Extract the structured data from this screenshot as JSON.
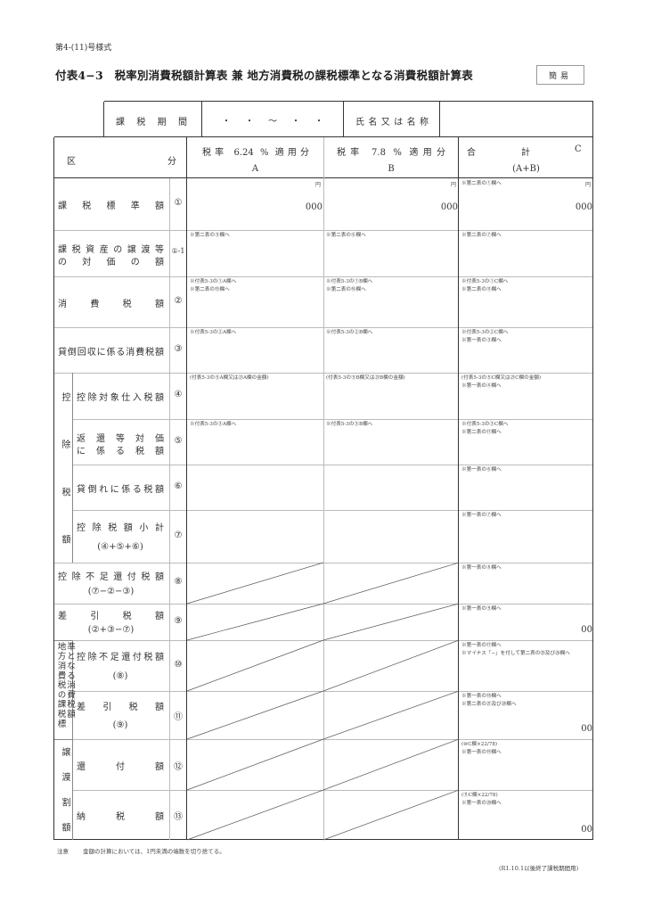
{
  "form_number": "第4-(11)号様式",
  "title": "付表4−3　税率別消費税額計算表 兼 地方消費税の課税標準となる消費税額計算表",
  "badge": "簡易",
  "top_table": {
    "period_label": "課税期間",
    "period_value": "・　・　〜　・　・",
    "name_label": "氏名又は名称",
    "name_value": ""
  },
  "header": {
    "category_left": "区",
    "category_right": "分",
    "col_a_line1": "税率 6.24 % 適用分",
    "col_a_line2": "A",
    "col_b_line1": "税率 7.8 % 適用分",
    "col_b_line2": "B",
    "col_c_left": "合",
    "col_c_mid": "計",
    "col_c_right": "C",
    "col_c_line2": "(A+B)"
  },
  "groups": [
    {
      "label": "控除税額",
      "vertical": false,
      "chars": [
        "控",
        "除",
        "税",
        "額"
      ]
    },
    {
      "label": "地方消費税の課税標準となる消費税額",
      "vertical": true
    },
    {
      "label": "譲渡割額",
      "vertical": false,
      "chars": [
        "譲",
        "渡",
        "割",
        "額"
      ]
    }
  ],
  "rows": [
    {
      "label": [
        "課税標準額"
      ],
      "num": "①",
      "a": {
        "notes": [],
        "unit": "円",
        "value": "000"
      },
      "b": {
        "notes": [],
        "unit": "円",
        "value": "000"
      },
      "c": {
        "notes": [
          "※第二表の①欄へ"
        ],
        "unit": "円",
        "value": "000"
      }
    },
    {
      "label": [
        "課税資産の譲渡等",
        "の対価の額"
      ],
      "num": "①-1",
      "a": {
        "notes": [
          "※第二表の⑤欄へ"
        ]
      },
      "b": {
        "notes": [
          "※第二表の⑥欄へ"
        ]
      },
      "c": {
        "notes": [
          "※第二表の⑦欄へ"
        ]
      }
    },
    {
      "label": [
        "消費税額"
      ],
      "num": "②",
      "a": {
        "notes": [
          "※付表5-3の①A欄へ",
          "※第二表の⑮欄へ"
        ]
      },
      "b": {
        "notes": [
          "※付表5-3の①B欄へ",
          "※第二表の⑯欄へ"
        ]
      },
      "c": {
        "notes": [
          "※付表5-3の①C欄へ",
          "※第二表の⑪欄へ"
        ]
      }
    },
    {
      "label": [
        "貸倒回収に係る消費税額"
      ],
      "num": "③",
      "a": {
        "notes": [
          "※付表5-3の②A欄へ"
        ]
      },
      "b": {
        "notes": [
          "※付表5-3の②B欄へ"
        ]
      },
      "c": {
        "notes": [
          "※付表5-3の②C欄へ",
          "※第一表の③欄へ"
        ]
      }
    },
    {
      "label": [
        "控除対象仕入税額"
      ],
      "num": "④",
      "a": {
        "notes": [
          "(付表5-3の⑤A欄又は㉑A欄の金額)"
        ]
      },
      "b": {
        "notes": [
          "(付表5-3の⑤B欄又は㉑B欄の金額)"
        ]
      },
      "c": {
        "notes": [
          "(付表5-3の⑤C欄又は㉑C欄の金額)",
          "※第一表の④欄へ"
        ]
      }
    },
    {
      "label": [
        "返還等対価",
        "に係る税額"
      ],
      "num": "⑤",
      "a": {
        "notes": [
          "※付表5-3の③A欄へ"
        ]
      },
      "b": {
        "notes": [
          "※付表5-3の③B欄へ"
        ]
      },
      "c": {
        "notes": [
          "※付表5-3の③C欄へ",
          "※第二表の⑰欄へ"
        ]
      }
    },
    {
      "label": [
        "貸倒れに係る税額"
      ],
      "num": "⑥",
      "a": {
        "notes": []
      },
      "b": {
        "notes": []
      },
      "c": {
        "notes": [
          "※第一表の⑥欄へ"
        ]
      }
    },
    {
      "label": [
        "控除税額小計"
      ],
      "formula": "(④+⑤+⑥)",
      "num": "⑦",
      "a": {
        "notes": []
      },
      "b": {
        "notes": []
      },
      "c": {
        "notes": [
          "※第一表の⑦欄へ"
        ]
      }
    },
    {
      "label": [
        "控除不足還付税額"
      ],
      "formula": "(⑦−②−③)",
      "num": "⑧",
      "ab_disabled": true,
      "c": {
        "notes": [
          "※第一表の⑧欄へ"
        ]
      }
    },
    {
      "label": [
        "差引税額"
      ],
      "formula": "(②+③−⑦)",
      "num": "⑨",
      "ab_disabled": true,
      "c": {
        "notes": [
          "※第一表の⑨欄へ"
        ],
        "value": "00"
      }
    },
    {
      "label": [
        "控除不足還付税額"
      ],
      "formula": "(⑧)",
      "num": "⑩",
      "ab_disabled": true,
      "c": {
        "notes": [
          "※第一表の⑰欄へ",
          "※マイナス「−」を付して第二表の㉕及び㉖欄へ"
        ]
      }
    },
    {
      "label": [
        "差引税額"
      ],
      "formula": "(⑨)",
      "num": "⑪",
      "ab_disabled": true,
      "c": {
        "notes": [
          "※第一表の⑱欄へ",
          "※第二表の㉗及び㉘欄へ"
        ],
        "value": "00"
      }
    },
    {
      "label": [
        "還付額"
      ],
      "num": "⑫",
      "ab_disabled": true,
      "c": {
        "notes": [
          "(⑩C欄×22/78)",
          "※第一表の⑲欄へ"
        ]
      }
    },
    {
      "label": [
        "納税額"
      ],
      "num": "⑬",
      "ab_disabled": true,
      "c": {
        "notes": [
          "(⑪C欄×22/78)",
          "※第一表の⑳欄へ"
        ],
        "value": "00"
      }
    }
  ],
  "footer": {
    "note_label": "注意",
    "note_text": "金額の計算においては、1円未満の端数を切り捨てる。",
    "applicability": "(R1.10.1以後終了課税期間用)"
  }
}
